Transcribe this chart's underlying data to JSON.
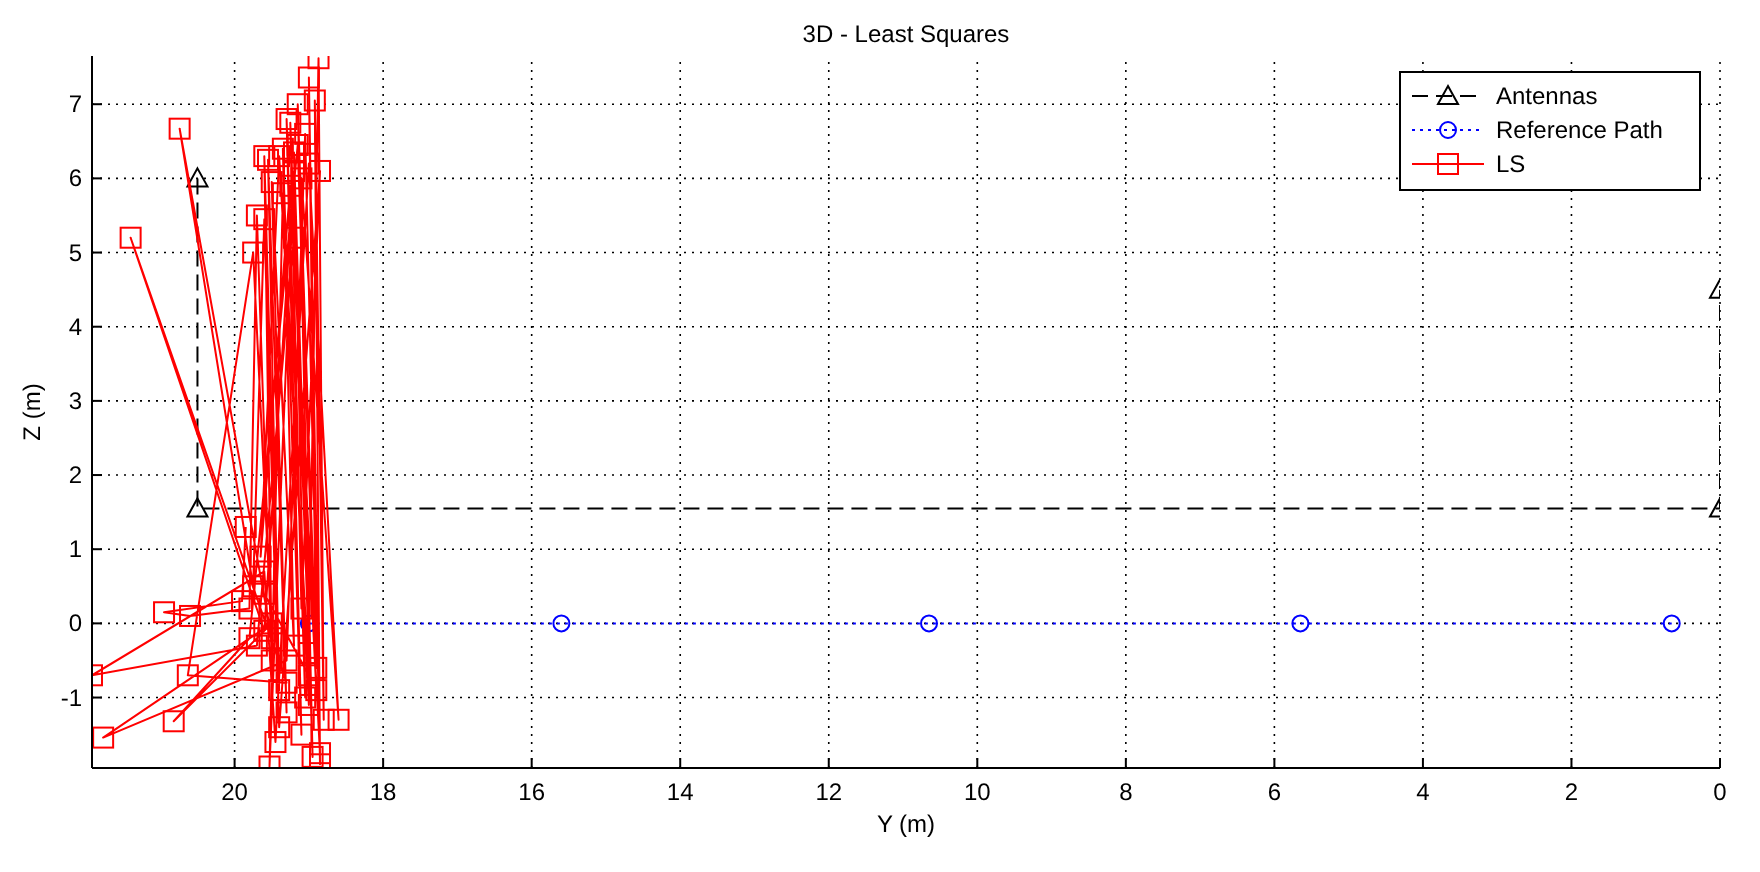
{
  "chart_data": {
    "type": "line",
    "title": "3D - Least Squares",
    "xlabel": "Y (m)",
    "ylabel": "Z (m)",
    "xlim": [
      21.92,
      0
    ],
    "ylim": [
      -1.95,
      7.65
    ],
    "xticks": [
      0,
      2,
      4,
      6,
      8,
      10,
      12,
      14,
      16,
      18,
      20
    ],
    "yticks": [
      -1,
      0,
      1,
      2,
      3,
      4,
      5,
      6,
      7
    ],
    "grid": true,
    "legend": "top right",
    "series": [
      {
        "name": "Antennas",
        "color": "#000000",
        "marker": "triangle",
        "line_style": "dashed",
        "x": [
          20.5,
          20.5,
          0,
          0
        ],
        "values": [
          6.0,
          1.55,
          1.55,
          4.5
        ]
      },
      {
        "name": "Reference Path",
        "color": "#0000ff",
        "marker": "circle",
        "line_style": "dotted",
        "x": [
          19.0,
          15.6,
          10.65,
          5.65,
          0.65
        ],
        "values": [
          0,
          0,
          0,
          0,
          0
        ]
      },
      {
        "name": "LS",
        "color": "#ff0000",
        "marker": "square",
        "line_style": "solid",
        "x": [
          19.85,
          19.9,
          20.95,
          20.6,
          19.8,
          19.7,
          19.5,
          19.6,
          19.4,
          19.55,
          19.3,
          19.5,
          19.2,
          19.35,
          19.1,
          19.3,
          19.05,
          19.2,
          18.95,
          19.15,
          18.9,
          19.0,
          18.85,
          18.92,
          18.8,
          18.87,
          19.0,
          19.25,
          19.1,
          18.85,
          19.4,
          19.6,
          19.75,
          20.74,
          19.5,
          19.75,
          20.63,
          19.3,
          21.4,
          19.6,
          19.2,
          19.53,
          19.35,
          19.0,
          19.1,
          18.6,
          19.0,
          19.45,
          19.6,
          21.92,
          19.7,
          19.2,
          18.9,
          19.15,
          19.8,
          20.82,
          19.5,
          21.77,
          19.3,
          19.05,
          18.85,
          19.25,
          19.65,
          19.4,
          19.0,
          19.6
        ],
        "values": [
          1.3,
          0.3,
          0.15,
          0.1,
          0.2,
          5.5,
          -0.5,
          6.3,
          -0.9,
          6.25,
          -1.2,
          5.95,
          -0.3,
          6.4,
          -1.5,
          6.8,
          -1.0,
          6.35,
          -1.8,
          7.0,
          -0.6,
          7.36,
          -1.9,
          7.05,
          -1.3,
          7.62,
          -0.4,
          6.75,
          0.2,
          6.1,
          -1.4,
          5.45,
          0.5,
          6.67,
          -0.2,
          5.0,
          -0.7,
          -0.8,
          5.2,
          -0.1,
          6.1,
          -1.93,
          5.8,
          -1.1,
          6.0,
          -1.3,
          6.2,
          -1.6,
          0.7,
          -0.7,
          -0.3,
          5.2,
          -0.9,
          6.45,
          -0.2,
          -1.32,
          0.0,
          -1.54,
          -0.5,
          6.6,
          -1.75,
          5.9,
          0.9,
          6.3,
          -0.7,
          0.4
        ]
      }
    ]
  }
}
